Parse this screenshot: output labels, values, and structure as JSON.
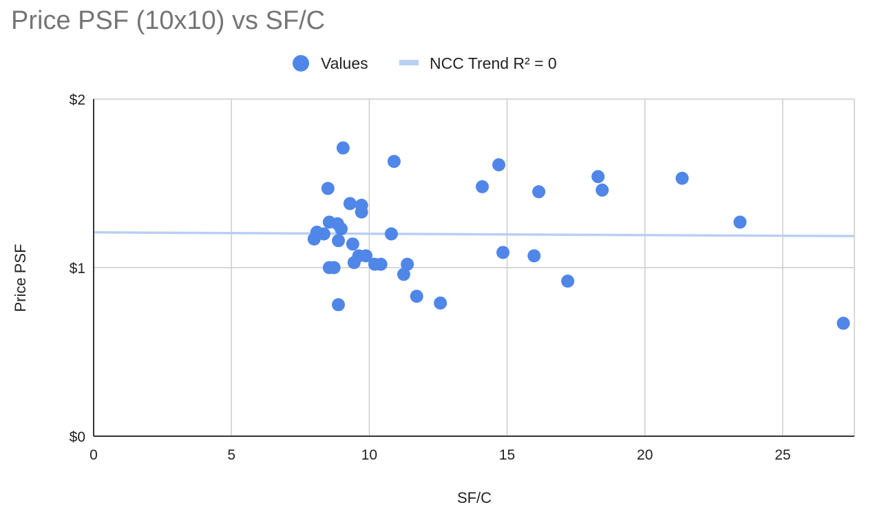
{
  "chart_data": {
    "type": "scatter",
    "title": "Price PSF (10x10) vs SF/C",
    "xlabel": "SF/C",
    "ylabel": "Price PSF",
    "xlim": [
      0,
      27.6
    ],
    "ylim": [
      0,
      2
    ],
    "x_ticks": [
      0,
      5,
      10,
      15,
      20,
      25
    ],
    "x_tick_labels": [
      "0",
      "5",
      "10",
      "15",
      "20",
      "25"
    ],
    "y_ticks": [
      0,
      1,
      2
    ],
    "y_tick_labels": [
      "$0",
      "$1",
      "$2"
    ],
    "grid": true,
    "legend": {
      "position": "top",
      "entries": [
        {
          "label": "Values",
          "marker": "circle",
          "color": "#4f86e8"
        },
        {
          "label": "NCC Trend R² = 0",
          "marker": "line",
          "color": "#b9cff3"
        }
      ]
    },
    "series": [
      {
        "name": "Values",
        "color": "#4f86e8",
        "points": [
          {
            "x": 9.05,
            "y": 1.71
          },
          {
            "x": 10.9,
            "y": 1.63
          },
          {
            "x": 14.7,
            "y": 1.61
          },
          {
            "x": 18.3,
            "y": 1.54
          },
          {
            "x": 21.35,
            "y": 1.53
          },
          {
            "x": 8.5,
            "y": 1.47
          },
          {
            "x": 14.1,
            "y": 1.48
          },
          {
            "x": 16.15,
            "y": 1.45
          },
          {
            "x": 18.45,
            "y": 1.46
          },
          {
            "x": 9.3,
            "y": 1.38
          },
          {
            "x": 9.72,
            "y": 1.37
          },
          {
            "x": 9.72,
            "y": 1.33
          },
          {
            "x": 23.45,
            "y": 1.27
          },
          {
            "x": 8.55,
            "y": 1.27
          },
          {
            "x": 8.85,
            "y": 1.26
          },
          {
            "x": 8.98,
            "y": 1.23
          },
          {
            "x": 8.1,
            "y": 1.21
          },
          {
            "x": 8.35,
            "y": 1.2
          },
          {
            "x": 10.8,
            "y": 1.2
          },
          {
            "x": 8.0,
            "y": 1.17
          },
          {
            "x": 8.88,
            "y": 1.16
          },
          {
            "x": 9.4,
            "y": 1.14
          },
          {
            "x": 14.85,
            "y": 1.09
          },
          {
            "x": 9.62,
            "y": 1.07
          },
          {
            "x": 9.88,
            "y": 1.07
          },
          {
            "x": 15.98,
            "y": 1.07
          },
          {
            "x": 9.45,
            "y": 1.03
          },
          {
            "x": 10.2,
            "y": 1.02
          },
          {
            "x": 10.42,
            "y": 1.02
          },
          {
            "x": 11.38,
            "y": 1.02
          },
          {
            "x": 8.55,
            "y": 1.0
          },
          {
            "x": 8.72,
            "y": 1.0
          },
          {
            "x": 11.25,
            "y": 0.96
          },
          {
            "x": 17.2,
            "y": 0.92
          },
          {
            "x": 11.72,
            "y": 0.83
          },
          {
            "x": 12.58,
            "y": 0.79
          },
          {
            "x": 8.88,
            "y": 0.78
          },
          {
            "x": 27.2,
            "y": 0.67
          }
        ]
      }
    ],
    "trendline": {
      "name": "NCC Trend R² = 0",
      "color": "#b9cff3",
      "x": [
        0,
        27.6
      ],
      "y": [
        1.209,
        1.187
      ]
    }
  }
}
